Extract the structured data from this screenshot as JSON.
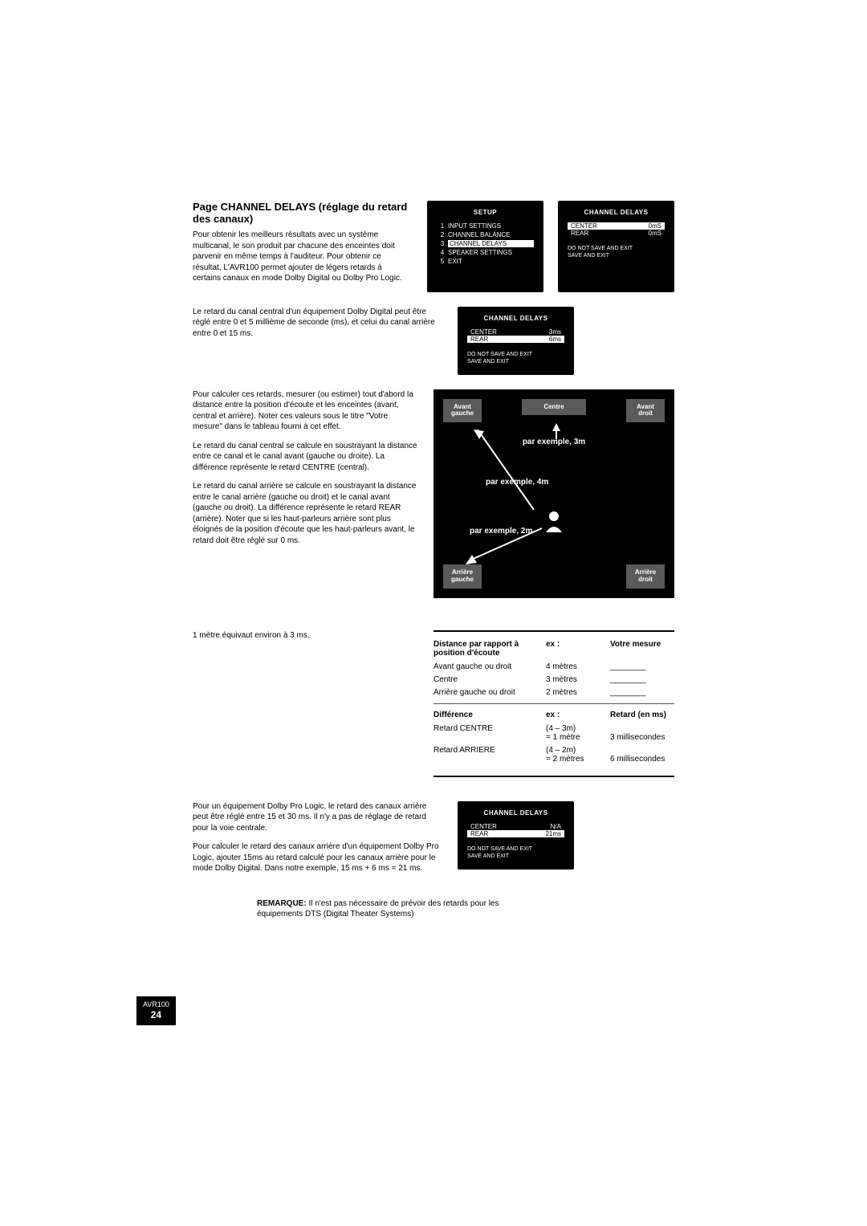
{
  "section": {
    "title": "Page CHANNEL DELAYS (réglage du retard des canaux)",
    "p1": "Pour obtenir les meilleurs résultats avec un système multicanal, le son produit par chacune des enceintes doit parvenir en même temps à l'auditeur. Pour obtenir ce résultat, L'AVR100 permet ajouter de légers retards à certains canaux en mode Dolby Digital ou Dolby Pro Logic.",
    "p2": "Le retard du canal central d'un équipement Dolby Digital peut être réglé entre 0 et 5 millième de seconde (ms), et celui du canal arrière entre 0 et 15 ms.",
    "p3": "Pour calculer ces retards, mesurer (ou estimer) tout d'abord la distance entre la position d'écoute et les enceintes (avant, central et arrière). Noter ces valeurs sous le titre \"Votre mesure\" dans le tableau fourni à cet effet.",
    "p4": "Le retard du canal central se calcule en soustrayant la distance entre ce canal et le canal avant (gauche ou droite). La différence représente le retard CENTRE (central).",
    "p5": "Le retard du canal arrière se calcule en soustrayant la distance entre le canal arrière (gauche ou droit) et le canal avant (gauche ou droit). La différence représente le retard REAR (arrière). Noter que si les haut-parleurs arrière sont plus éloignés de la position d'écoute que les haut-parleurs avant, le retard doit être réglé sur 0 ms.",
    "p6": "1 mètre équivaut environ à 3 ms.",
    "p7": "Pour un équipement Dolby Pro Logic, le retard des canaux arrière peut être réglé entre 15 et 30 ms. Il n'y a pas de réglage de retard pour la voie centrale.",
    "p8": "Pour calculer le retard des canaux arrière d'un équipement Dolby Pro Logic, ajouter 15ms au retard calculé pour les canaux arrière pour le mode Dolby Digital. Dans notre exemple, 15 ms + 6 ms = 21 ms.",
    "note_label": "REMARQUE:",
    "note": " Il n'est pas nécessaire de prévoir des retards pour les équipements DTS (Digital Theater Systems)"
  },
  "setup_box": {
    "title": "SETUP",
    "items": [
      {
        "n": "1",
        "label": "INPUT SETTINGS"
      },
      {
        "n": "2",
        "label": "CHANNEL BALANCE"
      },
      {
        "n": "3",
        "label": "CHANNEL DELAYS",
        "sel": true
      },
      {
        "n": "4",
        "label": "SPEAKER SETTINGS"
      },
      {
        "n": "5",
        "label": "EXIT"
      }
    ],
    "bottom1": "DO NOT SAVE AND EXIT",
    "bottom2": "SAVE AND EXIT"
  },
  "delay_box1": {
    "title": "CHANNEL DELAYS",
    "rows": [
      {
        "l": "CENTER",
        "v": "0mS",
        "sel": true
      },
      {
        "l": "REAR",
        "v": "0mS"
      }
    ]
  },
  "delay_box2": {
    "title": "CHANNEL DELAYS",
    "rows": [
      {
        "l": "CENTER",
        "v": "3ms"
      },
      {
        "l": "REAR",
        "v": "6ms",
        "sel": true
      }
    ]
  },
  "delay_box3": {
    "title": "CHANNEL DELAYS",
    "rows": [
      {
        "l": "CENTER",
        "v": "N/A"
      },
      {
        "l": "REAR",
        "v": "21ms",
        "sel": true
      }
    ]
  },
  "diagram": {
    "fl": "Avant gauche",
    "fr": "Avant droit",
    "ctr": "Centre",
    "rl": "Arrière gauche",
    "rr": "Arrière droit",
    "d1": "par exemple, 3m",
    "d2": "par exemple, 4m",
    "d3": "par exemple, 2m"
  },
  "table": {
    "h1": "Distance par rapport à position d'écoute",
    "h2": "ex :",
    "h3": "Votre mesure",
    "rows1": [
      {
        "c1": "Avant gauche ou droit",
        "c2": "4 mètres",
        "c3": "________"
      },
      {
        "c1": "Centre",
        "c2": "3 mètres",
        "c3": "________"
      },
      {
        "c1": "Arrière gauche ou droit",
        "c2": "2 mètres",
        "c3": "________"
      }
    ],
    "h4": "Différence",
    "h5": "ex :",
    "h6": "Retard (en ms)",
    "rows2": [
      {
        "c1": "Retard CENTRE",
        "c2a": "(4 – 3m)",
        "c2b": "= 1 mètre",
        "c3": "3 millisecondes"
      },
      {
        "c1": "Retard ARRIERE",
        "c2a": "(4 – 2m)",
        "c2b": "= 2 mètres",
        "c3": "6 millisecondes"
      }
    ]
  },
  "badge": {
    "l1": "AVR100",
    "l2": "24"
  }
}
